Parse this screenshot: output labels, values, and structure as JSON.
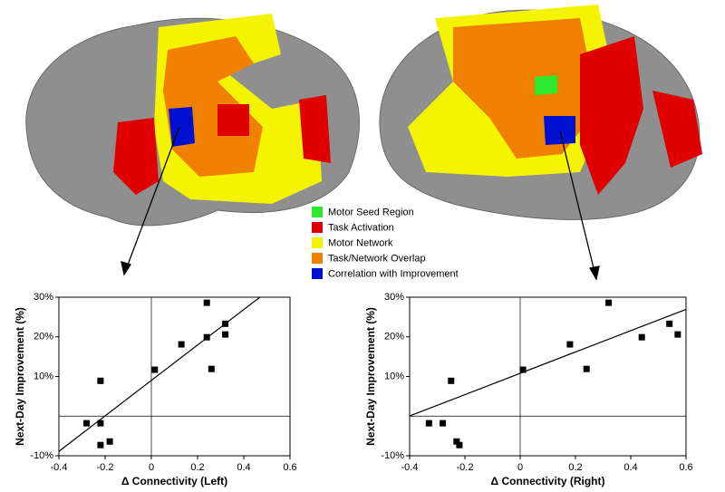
{
  "legend": [
    {
      "label": "Motor Seed Region",
      "color": "#2ee82e"
    },
    {
      "label": "Task Activation",
      "color": "#e00000"
    },
    {
      "label": "Motor Network",
      "color": "#f4f400"
    },
    {
      "label": "Task/Network Overlap",
      "color": "#f08000"
    },
    {
      "label": "Correlation with Improvement",
      "color": "#0010d0"
    }
  ],
  "chart_data": [
    {
      "type": "scatter",
      "x_label": "Δ Connectivity (Left)",
      "y_label": "Next-Day Improvement (%)",
      "x": [
        -0.28,
        -0.22,
        -0.22,
        -0.22,
        -0.18,
        0.015,
        0.13,
        0.24,
        0.24,
        0.26,
        0.32,
        0.32
      ],
      "values": [
        -1.8,
        -1.8,
        8.9,
        -7.3,
        -6.4,
        11.7,
        18.1,
        19.9,
        28.6,
        11.9,
        23.3,
        20.6
      ],
      "color": "#000000",
      "fit": {
        "slope": 44.7,
        "intercept": 9.0
      },
      "xlim": [
        -0.4,
        0.6
      ],
      "xticks": [
        -0.4,
        -0.2,
        0,
        0.2,
        0.4,
        0.6
      ],
      "ylim": [
        -10,
        30
      ],
      "yticks": [
        {
          "value": -10,
          "label": "-10%"
        },
        {
          "value": 10,
          "label": "10%"
        },
        {
          "value": 20,
          "label": "20%"
        },
        {
          "value": 30,
          "label": "30%"
        }
      ],
      "zero_lines": true
    },
    {
      "type": "scatter",
      "x_label": "Δ Connectivity (Right)",
      "y_label": "Next-Day Improvement (%)",
      "x": [
        -0.33,
        -0.28,
        -0.25,
        -0.23,
        -0.22,
        0.01,
        0.18,
        0.24,
        0.32,
        0.44,
        0.54,
        0.57
      ],
      "values": [
        -1.8,
        -1.8,
        8.9,
        -6.4,
        -7.3,
        11.7,
        18.1,
        11.9,
        28.6,
        19.9,
        23.3,
        20.6
      ],
      "color": "#000000",
      "fit": {
        "slope": 26.9,
        "intercept": 10.8
      },
      "xlim": [
        -0.4,
        0.6
      ],
      "xticks": [
        -0.4,
        -0.2,
        0,
        0.2,
        0.4,
        0.6
      ],
      "ylim": [
        -10,
        30
      ],
      "yticks": [
        {
          "value": -10,
          "label": "-10%"
        },
        {
          "value": 10,
          "label": "10%"
        },
        {
          "value": 20,
          "label": "20%"
        },
        {
          "value": 30,
          "label": "30%"
        }
      ],
      "zero_lines": true
    }
  ]
}
